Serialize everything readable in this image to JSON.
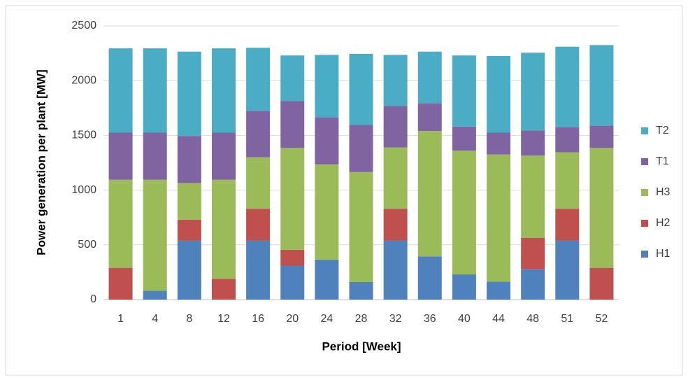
{
  "chart_data": {
    "type": "stacked_bar",
    "x_label": "Period [Week]",
    "y_label": "Power generation per plant [MW]",
    "categories": [
      "1",
      "4",
      "8",
      "12",
      "16",
      "20",
      "24",
      "28",
      "32",
      "36",
      "40",
      "44",
      "48",
      "51",
      "52"
    ],
    "series": [
      {
        "name": "H1",
        "color": "#4f81bd",
        "values": [
          0,
          80,
          540,
          0,
          540,
          310,
          365,
          160,
          540,
          395,
          230,
          165,
          280,
          540,
          0
        ]
      },
      {
        "name": "H2",
        "color": "#c0504d",
        "values": [
          290,
          0,
          190,
          190,
          290,
          145,
          0,
          0,
          290,
          0,
          0,
          0,
          285,
          290,
          290
        ]
      },
      {
        "name": "H3",
        "color": "#9bbb59",
        "values": [
          805,
          1015,
          335,
          905,
          470,
          930,
          870,
          1005,
          560,
          1145,
          1130,
          1160,
          750,
          515,
          1095
        ]
      },
      {
        "name": "T1",
        "color": "#8064a2",
        "values": [
          430,
          430,
          430,
          430,
          425,
          430,
          430,
          430,
          380,
          255,
          220,
          200,
          230,
          230,
          205
        ]
      },
      {
        "name": "T2",
        "color": "#4bacc6",
        "values": [
          770,
          770,
          770,
          770,
          575,
          415,
          570,
          650,
          465,
          470,
          650,
          700,
          710,
          735,
          735
        ]
      }
    ],
    "ylim": [
      0,
      2500
    ],
    "yticks": [
      0,
      500,
      1000,
      1500,
      2000,
      2500
    ],
    "grid": true,
    "legend": "right"
  }
}
